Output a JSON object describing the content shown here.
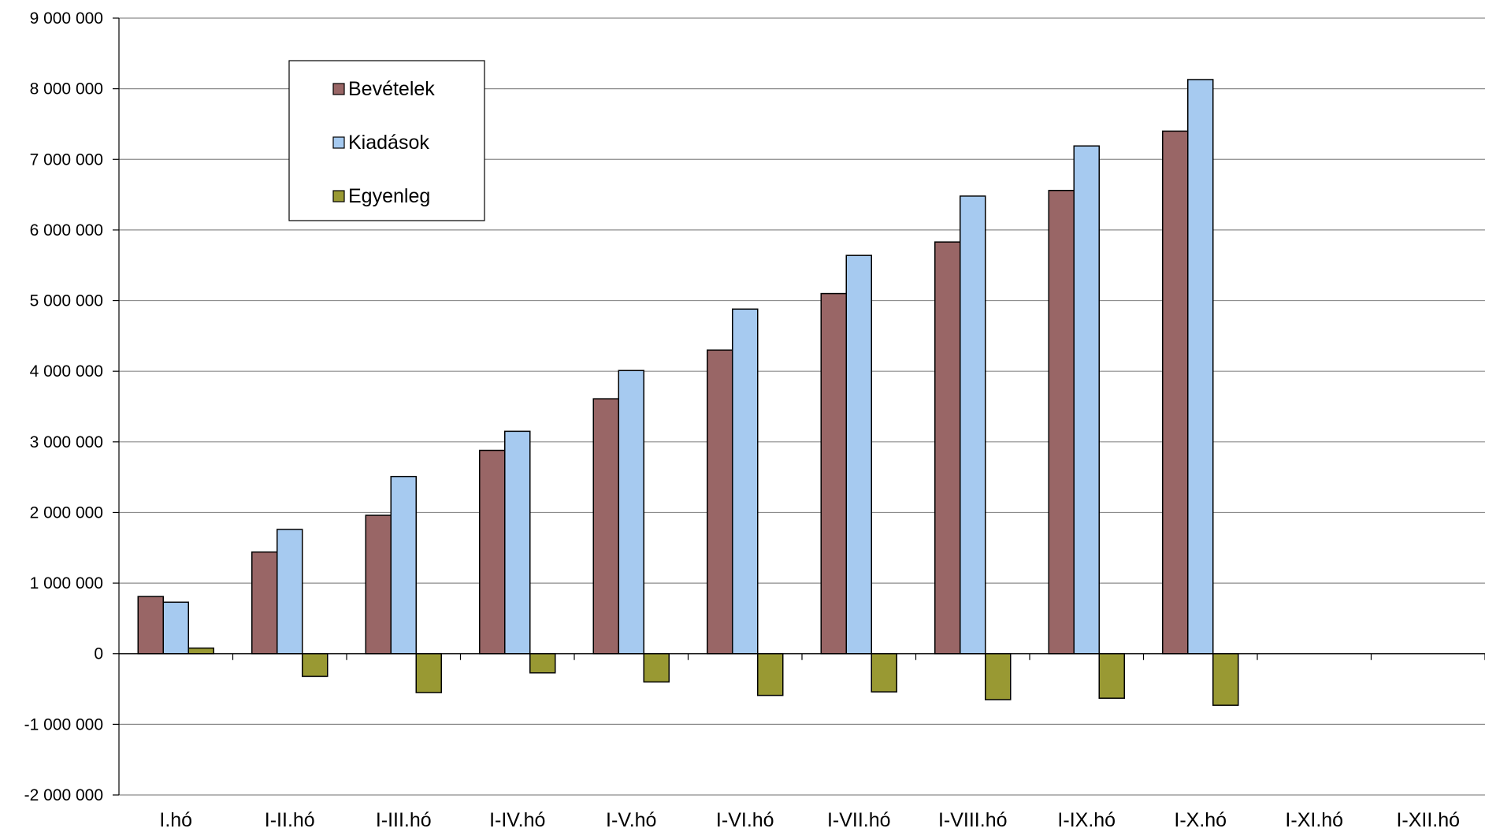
{
  "chart_data": {
    "type": "bar",
    "title": "",
    "xlabel": "",
    "ylabel": "",
    "ylim": [
      -2000000,
      9000000
    ],
    "ytick_step": 1000000,
    "yticks": [
      "-2 000 000",
      "-1 000 000",
      "0",
      "1 000 000",
      "2 000 000",
      "3 000 000",
      "4 000 000",
      "5 000 000",
      "6 000 000",
      "7 000 000",
      "8 000 000",
      "9 000 000"
    ],
    "grid": true,
    "legend_position": "top-left",
    "categories": [
      "I.hó",
      "I-II.hó",
      "I-III.hó",
      "I-IV.hó",
      "I-V.hó",
      "I-VI.hó",
      "I-VII.hó",
      "I-VIII.hó",
      "I-IX.hó",
      "I-X.hó",
      "I-XI.hó",
      "I-XII.hó"
    ],
    "series": [
      {
        "name": "Bevételek",
        "color": "#996666",
        "values": [
          810000,
          1440000,
          1960000,
          2880000,
          3610000,
          4300000,
          5100000,
          5830000,
          6560000,
          7400000,
          null,
          null
        ]
      },
      {
        "name": "Kiadások",
        "color": "#A6CAF0",
        "values": [
          730000,
          1760000,
          2510000,
          3150000,
          4010000,
          4880000,
          5640000,
          6480000,
          7190000,
          8130000,
          null,
          null
        ]
      },
      {
        "name": "Egyenleg",
        "color": "#999933",
        "values": [
          80000,
          -320000,
          -550000,
          -270000,
          -400000,
          -590000,
          -540000,
          -650000,
          -630000,
          -730000,
          null,
          null
        ]
      }
    ]
  }
}
